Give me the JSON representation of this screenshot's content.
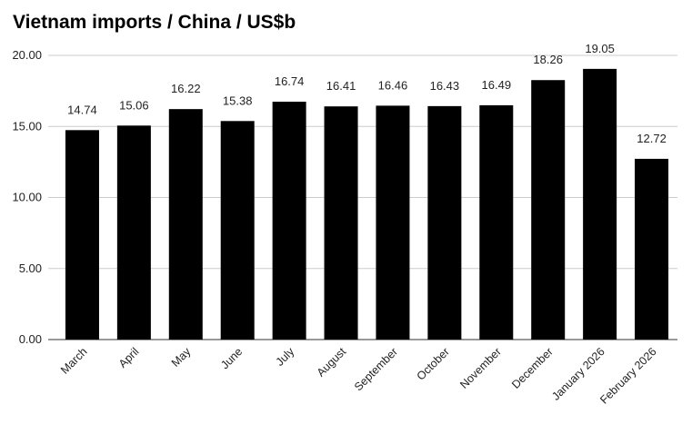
{
  "chart_data": {
    "type": "bar",
    "title": "Vietnam imports / China / US$b",
    "xlabel": "",
    "ylabel": "",
    "categories": [
      "March",
      "April",
      "May",
      "June",
      "July",
      "August",
      "September",
      "October",
      "November",
      "December",
      "January 2026",
      "February 2026"
    ],
    "values": [
      14.74,
      15.06,
      16.22,
      15.38,
      16.74,
      16.41,
      16.46,
      16.43,
      16.49,
      18.26,
      19.05,
      12.72
    ],
    "data_labels": [
      "14.74",
      "15.06",
      "16.22",
      "15.38",
      "16.74",
      "16.41",
      "16.46",
      "16.43",
      "16.49",
      "18.26",
      "19.05",
      "12.72"
    ],
    "ylim": [
      0,
      20
    ],
    "yticks": [
      "0.00",
      "5.00",
      "10.00",
      "15.00",
      "20.00"
    ],
    "grid": true,
    "bar_color": "#000000"
  }
}
